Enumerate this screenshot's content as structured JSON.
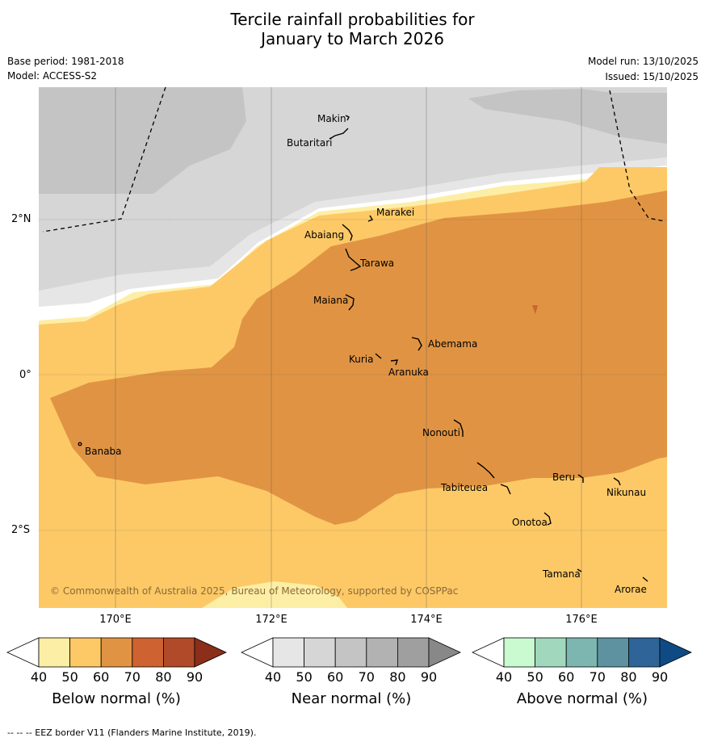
{
  "title": {
    "line1": "Tercile rainfall probabilities for",
    "line2": "January to March 2026"
  },
  "meta": {
    "base_period": "Base period: 1981-2018",
    "model": "Model: ACCESS-S2",
    "model_run": "Model run: 13/10/2025",
    "issued": "Issued: 15/10/2025"
  },
  "axes": {
    "lon_labels": [
      "170°E",
      "172°E",
      "174°E",
      "176°E"
    ],
    "lat_labels": [
      "2°N",
      "0°",
      "2°S"
    ]
  },
  "islands": [
    {
      "name": "Makin"
    },
    {
      "name": "Butaritari"
    },
    {
      "name": "Marakei"
    },
    {
      "name": "Abaiang"
    },
    {
      "name": "Tarawa"
    },
    {
      "name": "Maiana"
    },
    {
      "name": "Abemama"
    },
    {
      "name": "Kuria"
    },
    {
      "name": "Aranuka"
    },
    {
      "name": "Banaba"
    },
    {
      "name": "Nonouti"
    },
    {
      "name": "Tabiteuea"
    },
    {
      "name": "Beru"
    },
    {
      "name": "Nikunau"
    },
    {
      "name": "Onotoa"
    },
    {
      "name": "Tamana"
    },
    {
      "name": "Arorae"
    }
  ],
  "copyright": "© Commonwealth of Australia 2025, Bureau of Meteorology, supported by COSPPac",
  "legends": [
    {
      "title": "Below normal (%)",
      "colors": [
        "#fdeea6",
        "#fdc966",
        "#e09443",
        "#ce6230",
        "#b04a28",
        "#8b2e1a"
      ]
    },
    {
      "title": "Near normal (%)",
      "colors": [
        "#e6e6e6",
        "#d6d6d6",
        "#c4c4c4",
        "#b2b2b2",
        "#9f9f9f",
        "#888888"
      ]
    },
    {
      "title": "Above normal (%)",
      "colors": [
        "#c9fad0",
        "#a1d8bd",
        "#7db6b0",
        "#5e92a1",
        "#2e6497",
        "#0f4a85"
      ]
    }
  ],
  "legend_ticks": [
    "40",
    "50",
    "60",
    "70",
    "80",
    "90"
  ],
  "footer": "--  --  -- EEZ border V11 (Flanders Marine Institute, 2019)."
}
